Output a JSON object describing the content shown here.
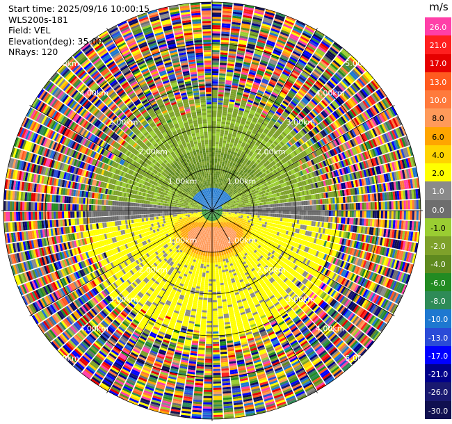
{
  "header": {
    "start_time": "Start time: 2025/09/16 10:00:15",
    "instrument": "WLS200s-181",
    "field": "Field: VEL",
    "elevation": "Elevation(deg): 35.00",
    "nrays": "NRays: 120"
  },
  "colorbar": {
    "unit": "m/s",
    "bins": [
      {
        "label": "26.0",
        "color": "#ff3fa8"
      },
      {
        "label": "21.0",
        "color": "#ff1f1f"
      },
      {
        "label": "17.0",
        "color": "#e60000"
      },
      {
        "label": "13.0",
        "color": "#ff5a1f"
      },
      {
        "label": "10.0",
        "color": "#ff7a3c"
      },
      {
        "label": "8.0",
        "color": "#ff9a5a"
      },
      {
        "label": "6.0",
        "color": "#ffa500"
      },
      {
        "label": "4.0",
        "color": "#ffd400"
      },
      {
        "label": "2.0",
        "color": "#ffff00"
      },
      {
        "label": "1.0",
        "color": "#8a8a8a"
      },
      {
        "label": "0.0",
        "color": "#6e6e6e"
      },
      {
        "label": "-1.0",
        "color": "#9acd32"
      },
      {
        "label": "-2.0",
        "color": "#7ea12a"
      },
      {
        "label": "-4.0",
        "color": "#5f8a1f"
      },
      {
        "label": "-6.0",
        "color": "#228b22"
      },
      {
        "label": "-8.0",
        "color": "#2e8b57"
      },
      {
        "label": "-10.0",
        "color": "#1e78d0"
      },
      {
        "label": "-13.0",
        "color": "#2a4bd7"
      },
      {
        "label": "-17.0",
        "color": "#0000ff"
      },
      {
        "label": "-21.0",
        "color": "#00008b"
      },
      {
        "label": "-26.0",
        "color": "#191970"
      },
      {
        "label": "-30.0",
        "color": "#101050"
      }
    ]
  },
  "chart_data": {
    "type": "heatmap",
    "projection": "polar-ppi",
    "field": "VEL",
    "nrays": 120,
    "ring_labels": [
      "1.00km",
      "2.00km",
      "3.00km",
      "4.00km",
      "5.00km"
    ],
    "ring_ranges_km": [
      1,
      2,
      3,
      4,
      5
    ],
    "radial_lines_deg": [
      0,
      30,
      60,
      90,
      120,
      150,
      180,
      210,
      240,
      270,
      300,
      330
    ],
    "pattern": {
      "inner_north": "negative velocities (green/olive), blue core near center",
      "inner_south": "positive velocities (yellow/orange), orange core south of center",
      "outer": "noise beyond ~2.5 km"
    }
  }
}
